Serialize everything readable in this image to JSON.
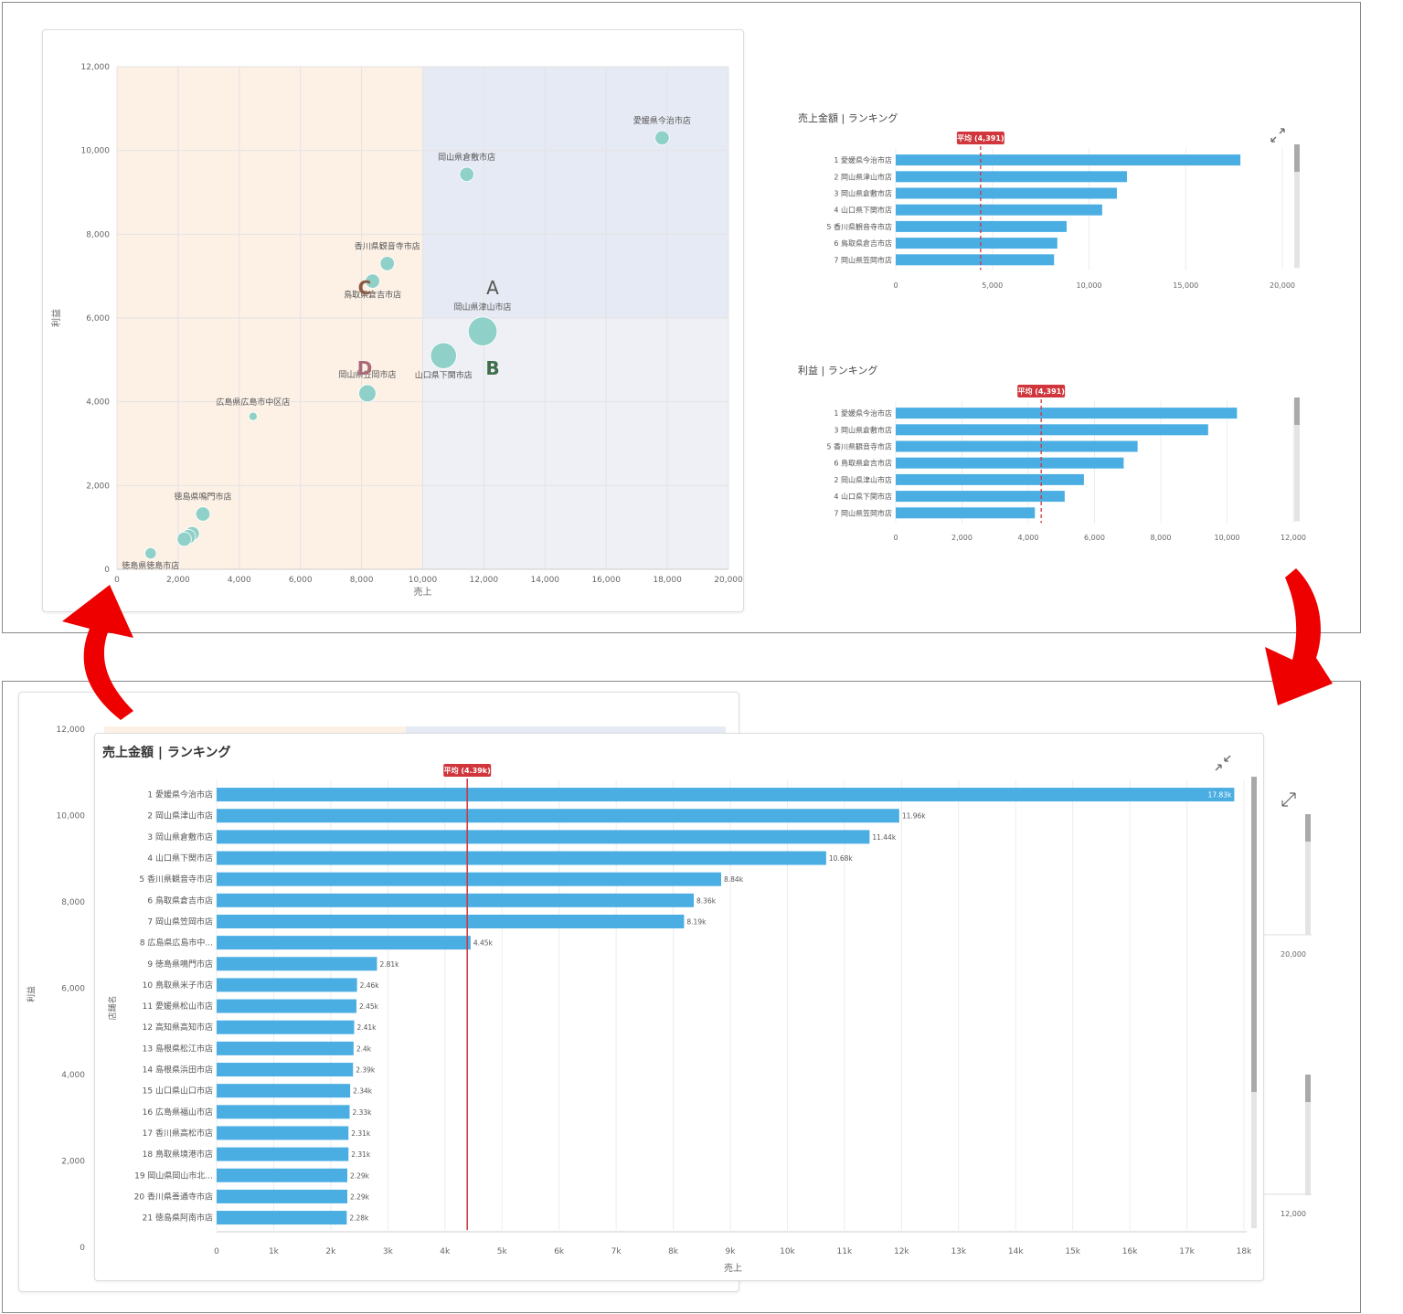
{
  "scatter": {
    "x_label": "売上",
    "y_label": "利益",
    "quadrant_labels": [
      "A",
      "B",
      "C",
      "D"
    ],
    "chart_data": {
      "type": "scatter",
      "xlabel": "売上",
      "ylabel": "利益",
      "xlim": [
        0,
        20000
      ],
      "ylim": [
        0,
        12000
      ],
      "x_ticks": [
        "0",
        "2,000",
        "4,000",
        "6,000",
        "8,000",
        "10,000",
        "12,000",
        "14,000",
        "16,000",
        "18,000",
        "20,000"
      ],
      "y_ticks": [
        "0",
        "2,000",
        "4,000",
        "6,000",
        "8,000",
        "10,000",
        "12,000"
      ],
      "points": [
        {
          "label": "愛媛県今治市店",
          "x": 17830,
          "y": 10300,
          "size": 3
        },
        {
          "label": "岡山県倉敷市店",
          "x": 11440,
          "y": 9430,
          "size": 3
        },
        {
          "label": "香川県観音寺市店",
          "x": 8840,
          "y": 7300,
          "size": 3
        },
        {
          "label": "鳥取県倉吉市店",
          "x": 8360,
          "y": 6880,
          "size": 3
        },
        {
          "label": "岡山県津山市店",
          "x": 11960,
          "y": 5680,
          "size": 8
        },
        {
          "label": "山口県下関市店",
          "x": 10680,
          "y": 5100,
          "size": 7
        },
        {
          "label": "岡山県笠岡市店",
          "x": 8190,
          "y": 4200,
          "size": 4
        },
        {
          "label": "広島県広島市中区店",
          "x": 4450,
          "y": 3650,
          "size": 1
        },
        {
          "label": "徳島県鳴門市店",
          "x": 2810,
          "y": 1320,
          "size": 3
        },
        {
          "label": "",
          "x": 2460,
          "y": 850,
          "size": 3
        },
        {
          "label": "",
          "x": 2340,
          "y": 780,
          "size": 3
        },
        {
          "label": "",
          "x": 2200,
          "y": 720,
          "size": 3
        },
        {
          "label": "徳島県徳島市店",
          "x": 1100,
          "y": 380,
          "size": 2
        }
      ]
    }
  },
  "sales_ranking_small": {
    "title": "売上金額 | ランキング",
    "avg_label": "平均 (4,391)",
    "chart_data": {
      "type": "bar",
      "orientation": "horizontal",
      "categories": [
        "1 愛媛県今治市店",
        "2 岡山県津山市店",
        "3 岡山県倉敷市店",
        "4 山口県下関市店",
        "5 香川県観音寺市店",
        "6 鳥取県倉吉市店",
        "7 岡山県笠岡市店"
      ],
      "values": [
        17830,
        11960,
        11440,
        10680,
        8840,
        8360,
        8190
      ],
      "xlim": [
        0,
        20000
      ],
      "x_ticks": [
        "0",
        "5,000",
        "10,000",
        "15,000",
        "20,000"
      ],
      "average": 4391
    }
  },
  "profit_ranking_small": {
    "title": "利益 | ランキング",
    "avg_label": "平均 (4,391)",
    "chart_data": {
      "type": "bar",
      "orientation": "horizontal",
      "categories": [
        "1 愛媛県今治市店",
        "3 岡山県倉敷市店",
        "5 香川県観音寺市店",
        "6 鳥取県倉吉市店",
        "2 岡山県津山市店",
        "4 山口県下関市店",
        "7 岡山県笠岡市店"
      ],
      "values": [
        10300,
        9430,
        7300,
        6880,
        5680,
        5100,
        4200
      ],
      "xlim": [
        0,
        12000
      ],
      "x_ticks": [
        "0",
        "2,000",
        "4,000",
        "6,000",
        "8,000",
        "10,000",
        "12,000"
      ],
      "average": 4391
    }
  },
  "background_scatter": {
    "y_label": "利益",
    "y_ticks": [
      "0",
      "2,000",
      "4,000",
      "6,000",
      "8,000",
      "10,000",
      "12,000"
    ],
    "side_ticks": [
      "20,000",
      "12,000"
    ]
  },
  "sales_ranking_large": {
    "title": "売上金額 | ランキング",
    "avg_label": "平均 (4.39k)",
    "y_axis_label": "店舗名",
    "x_axis_label": "売上",
    "chart_data": {
      "type": "bar",
      "orientation": "horizontal",
      "categories": [
        "1 愛媛県今治市店",
        "2 岡山県津山市店",
        "3 岡山県倉敷市店",
        "4 山口県下関市店",
        "5 香川県観音寺市店",
        "6 鳥取県倉吉市店",
        "7 岡山県笠岡市店",
        "8 広島県広島市中...",
        "9 徳島県鳴門市店",
        "10 鳥取県米子市店",
        "11 愛媛県松山市店",
        "12 高知県高知市店",
        "13 島根県松江市店",
        "14 島根県浜田市店",
        "15 山口県山口市店",
        "16 広島県福山市店",
        "17 香川県高松市店",
        "18 鳥取県境港市店",
        "19 岡山県岡山市北...",
        "20 香川県善通寺市店",
        "21 徳島県阿南市店"
      ],
      "values": [
        17830,
        11960,
        11440,
        10680,
        8840,
        8360,
        8190,
        4450,
        2810,
        2460,
        2450,
        2410,
        2400,
        2390,
        2340,
        2330,
        2310,
        2310,
        2290,
        2290,
        2280
      ],
      "value_labels": [
        "17.83k",
        "11.96k",
        "11.44k",
        "10.68k",
        "8.84k",
        "8.36k",
        "8.19k",
        "4.45k",
        "2.81k",
        "2.46k",
        "2.45k",
        "2.41k",
        "2.4k",
        "2.39k",
        "2.34k",
        "2.33k",
        "2.31k",
        "2.31k",
        "2.29k",
        "2.29k",
        "2.28k"
      ],
      "xlim": [
        0,
        18000
      ],
      "x_ticks": [
        "0",
        "1k",
        "2k",
        "3k",
        "4k",
        "5k",
        "6k",
        "7k",
        "8k",
        "9k",
        "10k",
        "11k",
        "12k",
        "13k",
        "14k",
        "15k",
        "16k",
        "17k",
        "18k"
      ],
      "average": 4391
    }
  },
  "colors": {
    "bar": "#4aaee3",
    "bubble": "#8fd1c8",
    "avg_line": "#d0363b",
    "quadrant_blue": "#e6eaf4",
    "quadrant_orange": "#fdf1e6",
    "arrow": "#ee0000",
    "label_A": "#555555",
    "label_B": "#3f6d4a",
    "label_C": "#8a5a44",
    "label_D": "#a86a78"
  }
}
